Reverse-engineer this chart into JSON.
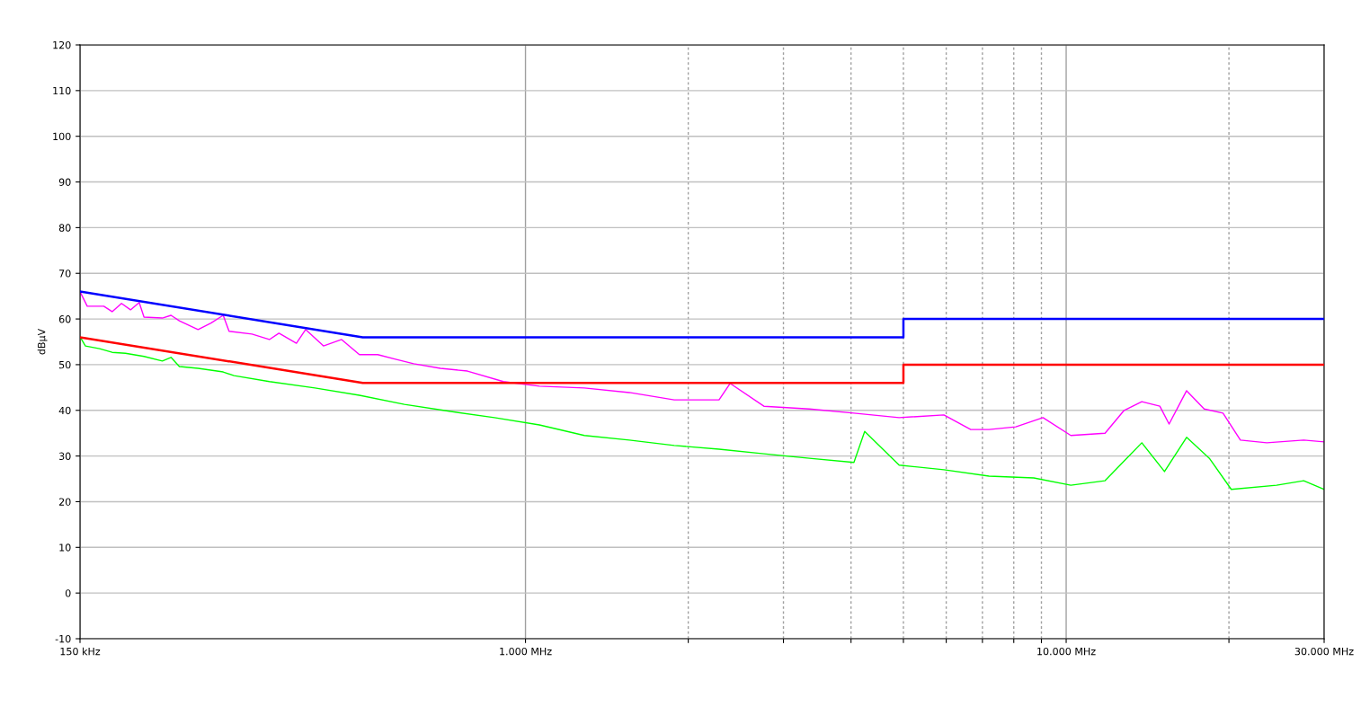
{
  "chart_data": {
    "type": "line",
    "ylabel": "dBµV",
    "log": "x",
    "grid": true,
    "marker": "none",
    "line_style": "solid",
    "xlim": [
      150,
      30000
    ],
    "ylim": [
      -10,
      120
    ],
    "xticks": [
      {
        "value": 150,
        "label": "150 kHz"
      },
      {
        "value": 1000,
        "label": "1.000 MHz"
      },
      {
        "value": 2000,
        "label": null
      },
      {
        "value": 3000,
        "label": null
      },
      {
        "value": 4000,
        "label": null
      },
      {
        "value": 5000,
        "label": null
      },
      {
        "value": 6000,
        "label": null
      },
      {
        "value": 7000,
        "label": null
      },
      {
        "value": 8000,
        "label": null
      },
      {
        "value": 9000,
        "label": null
      },
      {
        "value": 10000,
        "label": "10.000 MHz"
      },
      {
        "value": 20000,
        "label": null
      },
      {
        "value": 30000,
        "label": "30.000 MHz"
      }
    ],
    "yticks": [
      -10,
      0,
      10,
      20,
      30,
      40,
      50,
      60,
      70,
      80,
      90,
      100,
      110,
      120
    ],
    "series": [
      {
        "color": "#ff00ff",
        "x": [
          150,
          154.7,
          166,
          172,
          179,
          186,
          193,
          197,
          213,
          221,
          229,
          248,
          262,
          276,
          283,
          312,
          336,
          350,
          377,
          392,
          423,
          457,
          493,
          533,
          575,
          621,
          696,
          781,
          910,
          1061,
          1285,
          1556,
          1884,
          2280,
          2390,
          2760,
          3350,
          4050,
          4910,
          5940,
          6660,
          7200,
          8070,
          9060,
          10200,
          11800,
          12800,
          13800,
          14900,
          15500,
          16700,
          18000,
          19500,
          21000,
          23500,
          27500,
          30000
        ],
        "values": [
          66,
          62.8,
          62.8,
          61.6,
          63.4,
          62.0,
          63.6,
          60.4,
          60.2,
          60.8,
          59.6,
          57.7,
          59.1,
          60.8,
          57.3,
          56.7,
          55.5,
          56.9,
          54.7,
          57.7,
          54.1,
          55.5,
          52.2,
          52.2,
          51.2,
          50.2,
          49.2,
          48.6,
          46.3,
          45.3,
          44.9,
          43.9,
          42.3,
          42.3,
          45.9,
          40.9,
          40.3,
          39.4,
          38.4,
          39.0,
          35.8,
          35.8,
          36.4,
          38.4,
          34.5,
          35.0,
          40.0,
          41.9,
          40.9,
          37.0,
          44.3,
          40.3,
          39.4,
          33.5,
          32.9,
          33.5,
          33.1
        ]
      },
      {
        "color": "#00ff00",
        "x": [
          150,
          153.5,
          163,
          172,
          182,
          197,
          213,
          221,
          229,
          248,
          276,
          289,
          336,
          408,
          493,
          597,
          723,
          876,
          1061,
          1285,
          1556,
          1884,
          2280,
          2760,
          3350,
          4050,
          4240,
          4910,
          5940,
          7200,
          8710,
          10200,
          11800,
          13800,
          15200,
          16700,
          18400,
          20200,
          24500,
          27500,
          30000
        ],
        "values": [
          56.1,
          54.1,
          53.5,
          52.7,
          52.5,
          51.8,
          50.8,
          51.6,
          49.6,
          49.2,
          48.4,
          47.6,
          46.3,
          44.9,
          43.3,
          41.3,
          39.8,
          38.4,
          36.8,
          34.5,
          33.5,
          32.3,
          31.5,
          30.5,
          29.5,
          28.6,
          35.4,
          28.0,
          27.0,
          25.6,
          25.2,
          23.6,
          24.6,
          32.9,
          26.6,
          34.1,
          29.5,
          22.7,
          23.6,
          24.6,
          22.7
        ]
      },
      {
        "color": "#0000ff",
        "x": [
          150,
          500,
          5000,
          5000,
          30000
        ],
        "values": [
          66,
          56,
          56,
          60,
          60
        ]
      },
      {
        "color": "#ff0000",
        "x": [
          150,
          500,
          5000,
          5000,
          30000
        ],
        "values": [
          56,
          46,
          46,
          50,
          50
        ]
      }
    ]
  }
}
